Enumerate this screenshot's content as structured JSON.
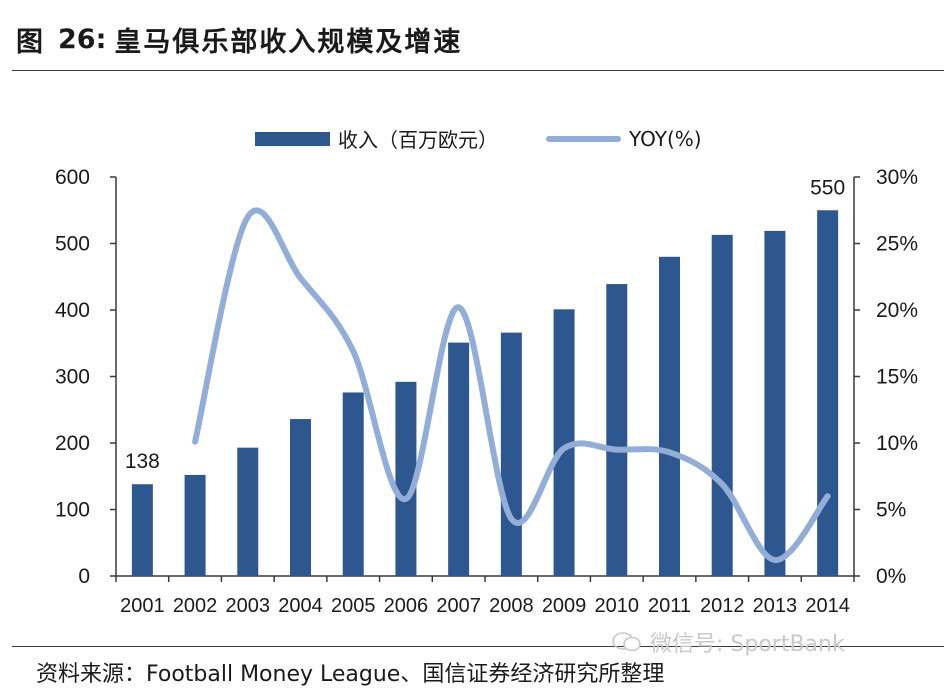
{
  "figure": {
    "label": "图",
    "number": "26:",
    "title": "皇马俱乐部收入规模及增速"
  },
  "legend": {
    "bar_label": "收入（百万欧元）",
    "line_label": "YOY(%)"
  },
  "source": "资料来源：Football Money League、国信证券经济研究所整理",
  "watermark": "微信号: SportBank",
  "colors": {
    "bar": "#2e5790",
    "line": "#92aed8",
    "axis": "#3a3a3a"
  },
  "chart_data": {
    "type": "bar",
    "categories": [
      "2001",
      "2002",
      "2003",
      "2004",
      "2005",
      "2006",
      "2007",
      "2008",
      "2009",
      "2010",
      "2011",
      "2012",
      "2013",
      "2014"
    ],
    "series": [
      {
        "name": "收入（百万欧元）",
        "type": "bar",
        "axis": "left",
        "values": [
          138,
          152,
          193,
          236,
          276,
          292,
          351,
          366,
          401,
          439,
          480,
          513,
          519,
          550
        ]
      },
      {
        "name": "YOY(%)",
        "type": "line",
        "axis": "right",
        "smooth": true,
        "values": [
          null,
          10.1,
          27.0,
          22.4,
          16.9,
          5.8,
          20.2,
          4.3,
          9.6,
          9.5,
          9.3,
          6.9,
          1.2,
          6.0
        ]
      }
    ],
    "data_labels": [
      {
        "category": "2001",
        "text": "138"
      },
      {
        "category": "2014",
        "text": "550"
      }
    ],
    "y_left": {
      "min": 0,
      "max": 600,
      "ticks": [
        "0",
        "100",
        "200",
        "300",
        "400",
        "500",
        "600"
      ]
    },
    "y_right": {
      "min": 0,
      "max": 30,
      "ticks": [
        "0%",
        "5%",
        "10%",
        "15%",
        "20%",
        "25%",
        "30%"
      ]
    },
    "grid": false,
    "legend_position": "top-center"
  }
}
